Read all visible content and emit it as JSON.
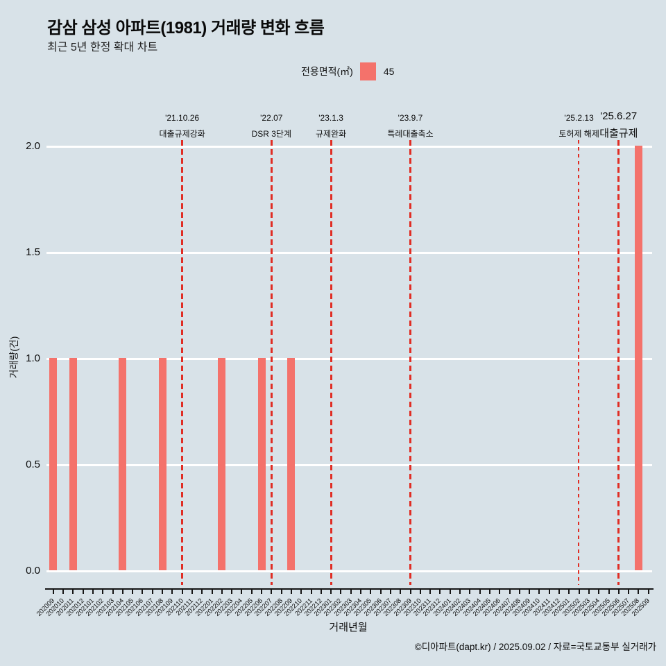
{
  "header": {
    "title": "감삼 삼성 아파트(1981) 거래량 변화 흐름",
    "subtitle": "최근 5년 한정 확대 차트"
  },
  "legend": {
    "label": "전용면적(㎡)",
    "value": "45",
    "swatch_color": "#f4726b"
  },
  "footer": {
    "credit": "©디아파트(dapt.kr) / 2025.09.02 / 자료=국토교통부 실거래가"
  },
  "chart_data": {
    "type": "bar",
    "title": "감삼 삼성 아파트(1981) 거래량 변화 흐름",
    "xlabel": "거래년월",
    "ylabel": "거래량(건)",
    "ylim": [
      0,
      2
    ],
    "yticks": [
      "0.0",
      "0.5",
      "1.0",
      "1.5",
      "2.0"
    ],
    "grid": true,
    "legend_position": "top",
    "bar_color": "#f4726b",
    "annotation_line_color": "#e02d24",
    "categories": [
      "202009",
      "202010",
      "202011",
      "202012",
      "202101",
      "202102",
      "202103",
      "202104",
      "202105",
      "202106",
      "202107",
      "202108",
      "202109",
      "202110",
      "202111",
      "202112",
      "202201",
      "202202",
      "202203",
      "202204",
      "202205",
      "202206",
      "202207",
      "202208",
      "202209",
      "202210",
      "202211",
      "202212",
      "202301",
      "202302",
      "202303",
      "202304",
      "202305",
      "202306",
      "202307",
      "202308",
      "202309",
      "202310",
      "202311",
      "202312",
      "202401",
      "202402",
      "202403",
      "202404",
      "202405",
      "202406",
      "202407",
      "202408",
      "202409",
      "202410",
      "202411",
      "202412",
      "202501",
      "202502",
      "202503",
      "202504",
      "202505",
      "202506",
      "202507",
      "202508",
      "202509"
    ],
    "values": [
      1,
      0,
      1,
      0,
      0,
      0,
      0,
      1,
      0,
      0,
      0,
      1,
      0,
      0,
      0,
      0,
      0,
      1,
      0,
      0,
      0,
      1,
      0,
      0,
      1,
      0,
      0,
      0,
      0,
      0,
      0,
      0,
      0,
      0,
      0,
      0,
      0,
      0,
      0,
      0,
      0,
      0,
      0,
      0,
      0,
      0,
      0,
      0,
      0,
      0,
      0,
      0,
      0,
      0,
      0,
      0,
      0,
      0,
      0,
      2,
      0
    ],
    "annotations": [
      {
        "date": "'21.10.26",
        "label": "대출규제강화",
        "month": "202110",
        "emphasis": false,
        "thin_line": false
      },
      {
        "date": "'22.07",
        "label": "DSR 3단계",
        "month": "202207",
        "emphasis": false,
        "thin_line": false
      },
      {
        "date": "'23.1.3",
        "label": "규제완화",
        "month": "202301",
        "emphasis": false,
        "thin_line": false
      },
      {
        "date": "'23.9.7",
        "label": "특례대출축소",
        "month": "202309",
        "emphasis": false,
        "thin_line": false
      },
      {
        "date": "'25.2.13",
        "label": "토허제 해제",
        "month": "202502",
        "emphasis": false,
        "thin_line": true
      },
      {
        "date": "'25.6.27",
        "label": "대출규제",
        "month": "202506",
        "emphasis": true,
        "thin_line": false
      }
    ]
  }
}
